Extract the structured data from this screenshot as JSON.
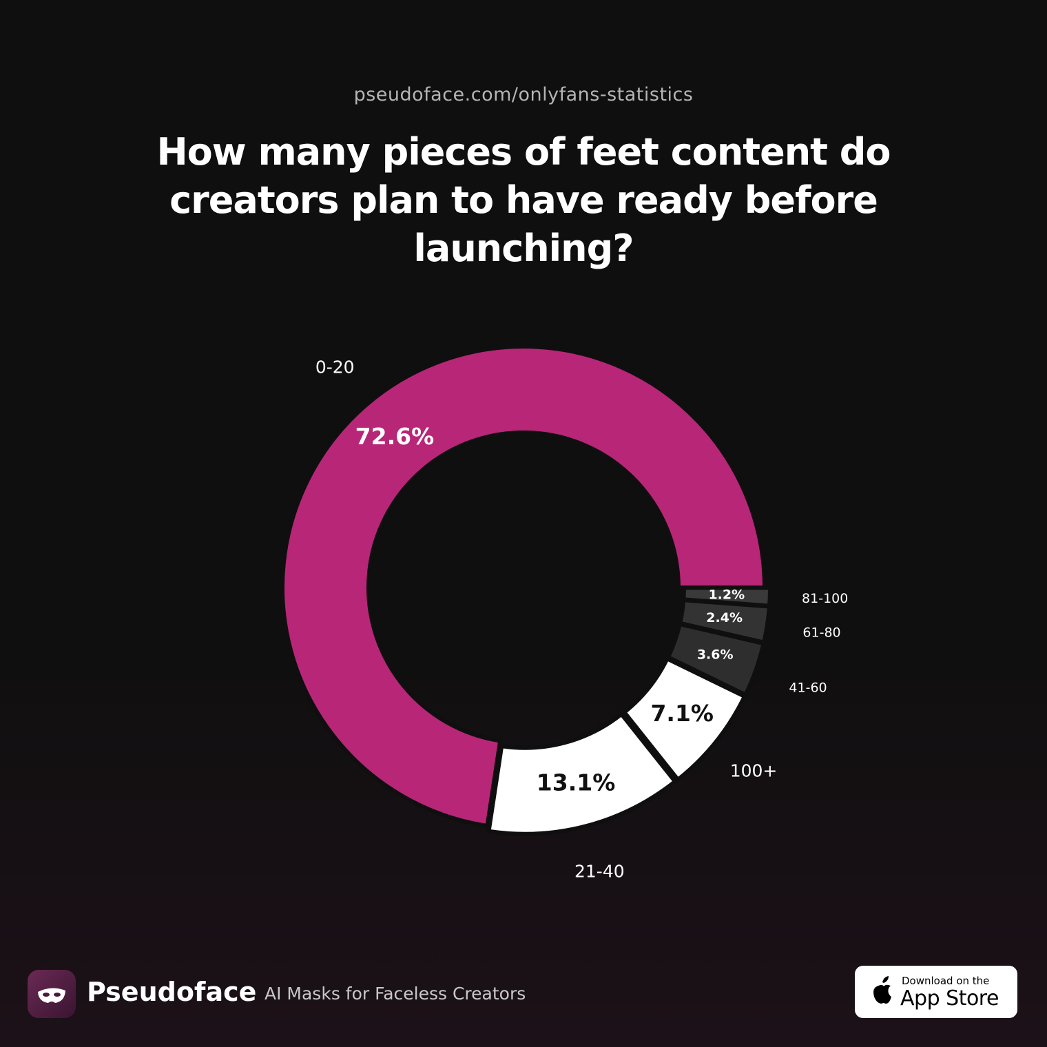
{
  "source": "pseudoface.com/onlyfans-statistics",
  "chart_data": {
    "type": "donut",
    "title": "How many pieces of feet content do creators plan to have ready before launching?",
    "categories": [
      "0-20",
      "21-40",
      "100+",
      "41-60",
      "61-80",
      "81-100"
    ],
    "values": [
      72.6,
      13.1,
      7.1,
      3.6,
      2.4,
      1.2
    ],
    "value_labels": [
      "72.6%",
      "13.1%",
      "7.1%",
      "3.6%",
      "2.4%",
      "1.2%"
    ],
    "colors": [
      "#b82677",
      "#ffffff",
      "#ffffff",
      "#2e2e2e",
      "#333333",
      "#3a3a3a"
    ]
  },
  "footer": {
    "brand": "Pseudoface",
    "tagline": "AI Masks for Faceless Creators",
    "badge": {
      "small": "Download on the",
      "large": "App Store"
    }
  }
}
